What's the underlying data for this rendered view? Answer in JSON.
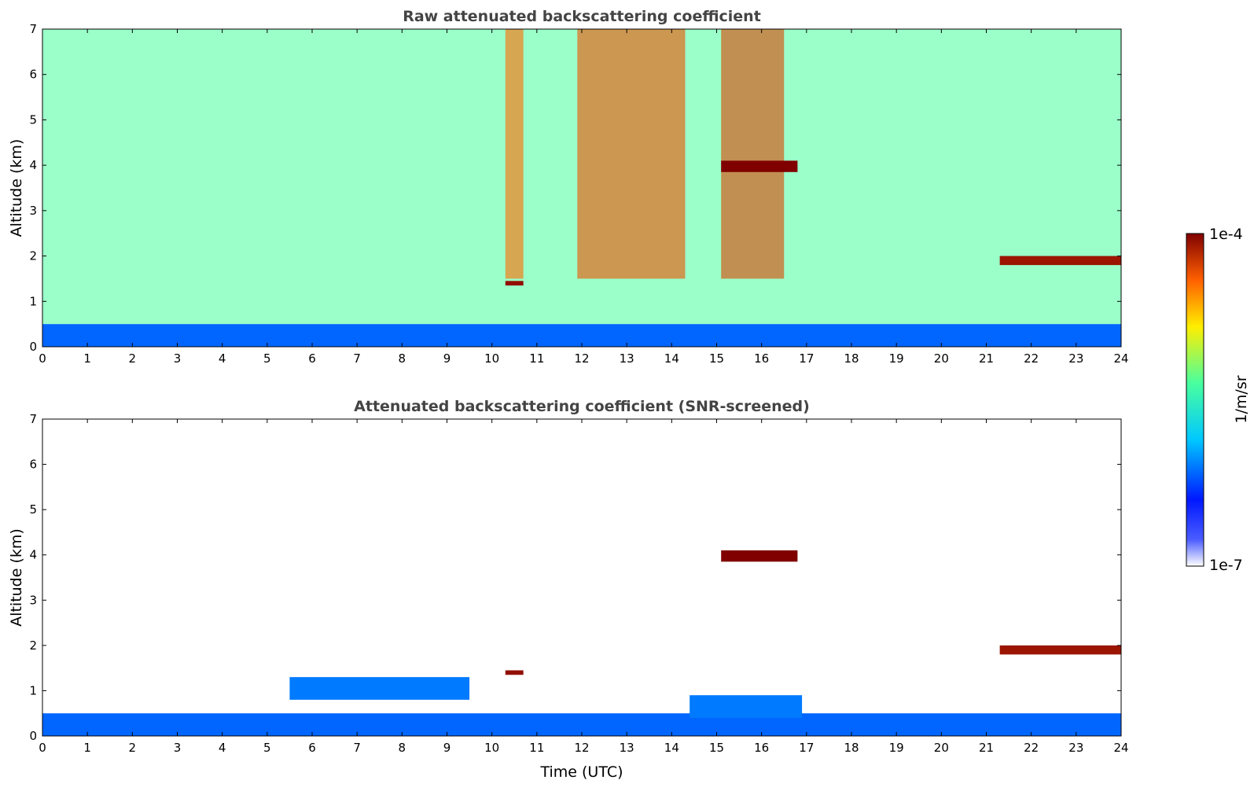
{
  "chart_data": [
    {
      "type": "heatmap",
      "title": "Raw attenuated backscattering coefficient",
      "xlabel": "",
      "ylabel": "Altitude (km)",
      "xlim": [
        0,
        24
      ],
      "ylim": [
        0,
        7
      ],
      "xticks": [
        "0",
        "1",
        "2",
        "3",
        "4",
        "5",
        "6",
        "7",
        "8",
        "9",
        "10",
        "11",
        "12",
        "13",
        "14",
        "15",
        "16",
        "17",
        "18",
        "19",
        "20",
        "21",
        "22",
        "23",
        "24"
      ],
      "yticks": [
        "0",
        "1",
        "2",
        "3",
        "4",
        "5",
        "6",
        "7"
      ],
      "features": [
        {
          "name": "boundary-layer",
          "t_start": 0,
          "t_end": 24,
          "alt_bottom": 0,
          "alt_top": 0.5,
          "level": 0.28
        },
        {
          "name": "noise-background",
          "t_start": 0,
          "t_end": 24,
          "alt_bottom": 0.5,
          "alt_top": 7,
          "level": 0.55
        },
        {
          "name": "noisy-column",
          "t_start": 10.3,
          "t_end": 10.7,
          "alt_bottom": 1.5,
          "alt_top": 7,
          "level": 0.85
        },
        {
          "name": "noisy-column",
          "t_start": 11.9,
          "t_end": 14.3,
          "alt_bottom": 1.5,
          "alt_top": 7,
          "level": 0.88
        },
        {
          "name": "noisy-column",
          "t_start": 15.1,
          "t_end": 16.5,
          "alt_bottom": 1.5,
          "alt_top": 7,
          "level": 0.9
        },
        {
          "name": "cloud",
          "t_start": 10.3,
          "t_end": 10.7,
          "alt_bottom": 1.35,
          "alt_top": 1.45,
          "level": 0.98
        },
        {
          "name": "cloud",
          "t_start": 15.1,
          "t_end": 16.8,
          "alt_bottom": 3.85,
          "alt_top": 4.1,
          "level": 1.0
        },
        {
          "name": "cloud",
          "t_start": 21.3,
          "t_end": 24,
          "alt_bottom": 1.8,
          "alt_top": 2.0,
          "level": 0.97
        }
      ]
    },
    {
      "type": "heatmap",
      "title": "Attenuated backscattering coefficient (SNR-screened)",
      "xlabel": "Time (UTC)",
      "ylabel": "Altitude (km)",
      "xlim": [
        0,
        24
      ],
      "ylim": [
        0,
        7
      ],
      "xticks": [
        "0",
        "1",
        "2",
        "3",
        "4",
        "5",
        "6",
        "7",
        "8",
        "9",
        "10",
        "11",
        "12",
        "13",
        "14",
        "15",
        "16",
        "17",
        "18",
        "19",
        "20",
        "21",
        "22",
        "23",
        "24"
      ],
      "yticks": [
        "0",
        "1",
        "2",
        "3",
        "4",
        "5",
        "6",
        "7"
      ],
      "features": [
        {
          "name": "boundary-layer",
          "t_start": 0,
          "t_end": 24,
          "alt_bottom": 0,
          "alt_top": 0.5,
          "level": 0.28
        },
        {
          "name": "aerosol-layer",
          "t_start": 5.5,
          "t_end": 9.5,
          "alt_bottom": 0.8,
          "alt_top": 1.3,
          "level": 0.3
        },
        {
          "name": "aerosol-layer",
          "t_start": 14.4,
          "t_end": 16.9,
          "alt_bottom": 0.4,
          "alt_top": 0.9,
          "level": 0.3
        },
        {
          "name": "cloud",
          "t_start": 10.3,
          "t_end": 10.7,
          "alt_bottom": 1.35,
          "alt_top": 1.45,
          "level": 0.98
        },
        {
          "name": "cloud",
          "t_start": 15.1,
          "t_end": 16.8,
          "alt_bottom": 3.85,
          "alt_top": 4.1,
          "level": 1.0
        },
        {
          "name": "cloud",
          "t_start": 21.3,
          "t_end": 24,
          "alt_bottom": 1.8,
          "alt_top": 2.0,
          "level": 0.97
        }
      ]
    }
  ],
  "colorbar": {
    "label": "1/m/sr",
    "min_label": "1e-7",
    "max_label": "1e-4",
    "colors": [
      "#ffffff",
      "#0018ff",
      "#00c8ff",
      "#48ff9e",
      "#ffee00",
      "#ff6000",
      "#800000"
    ]
  }
}
